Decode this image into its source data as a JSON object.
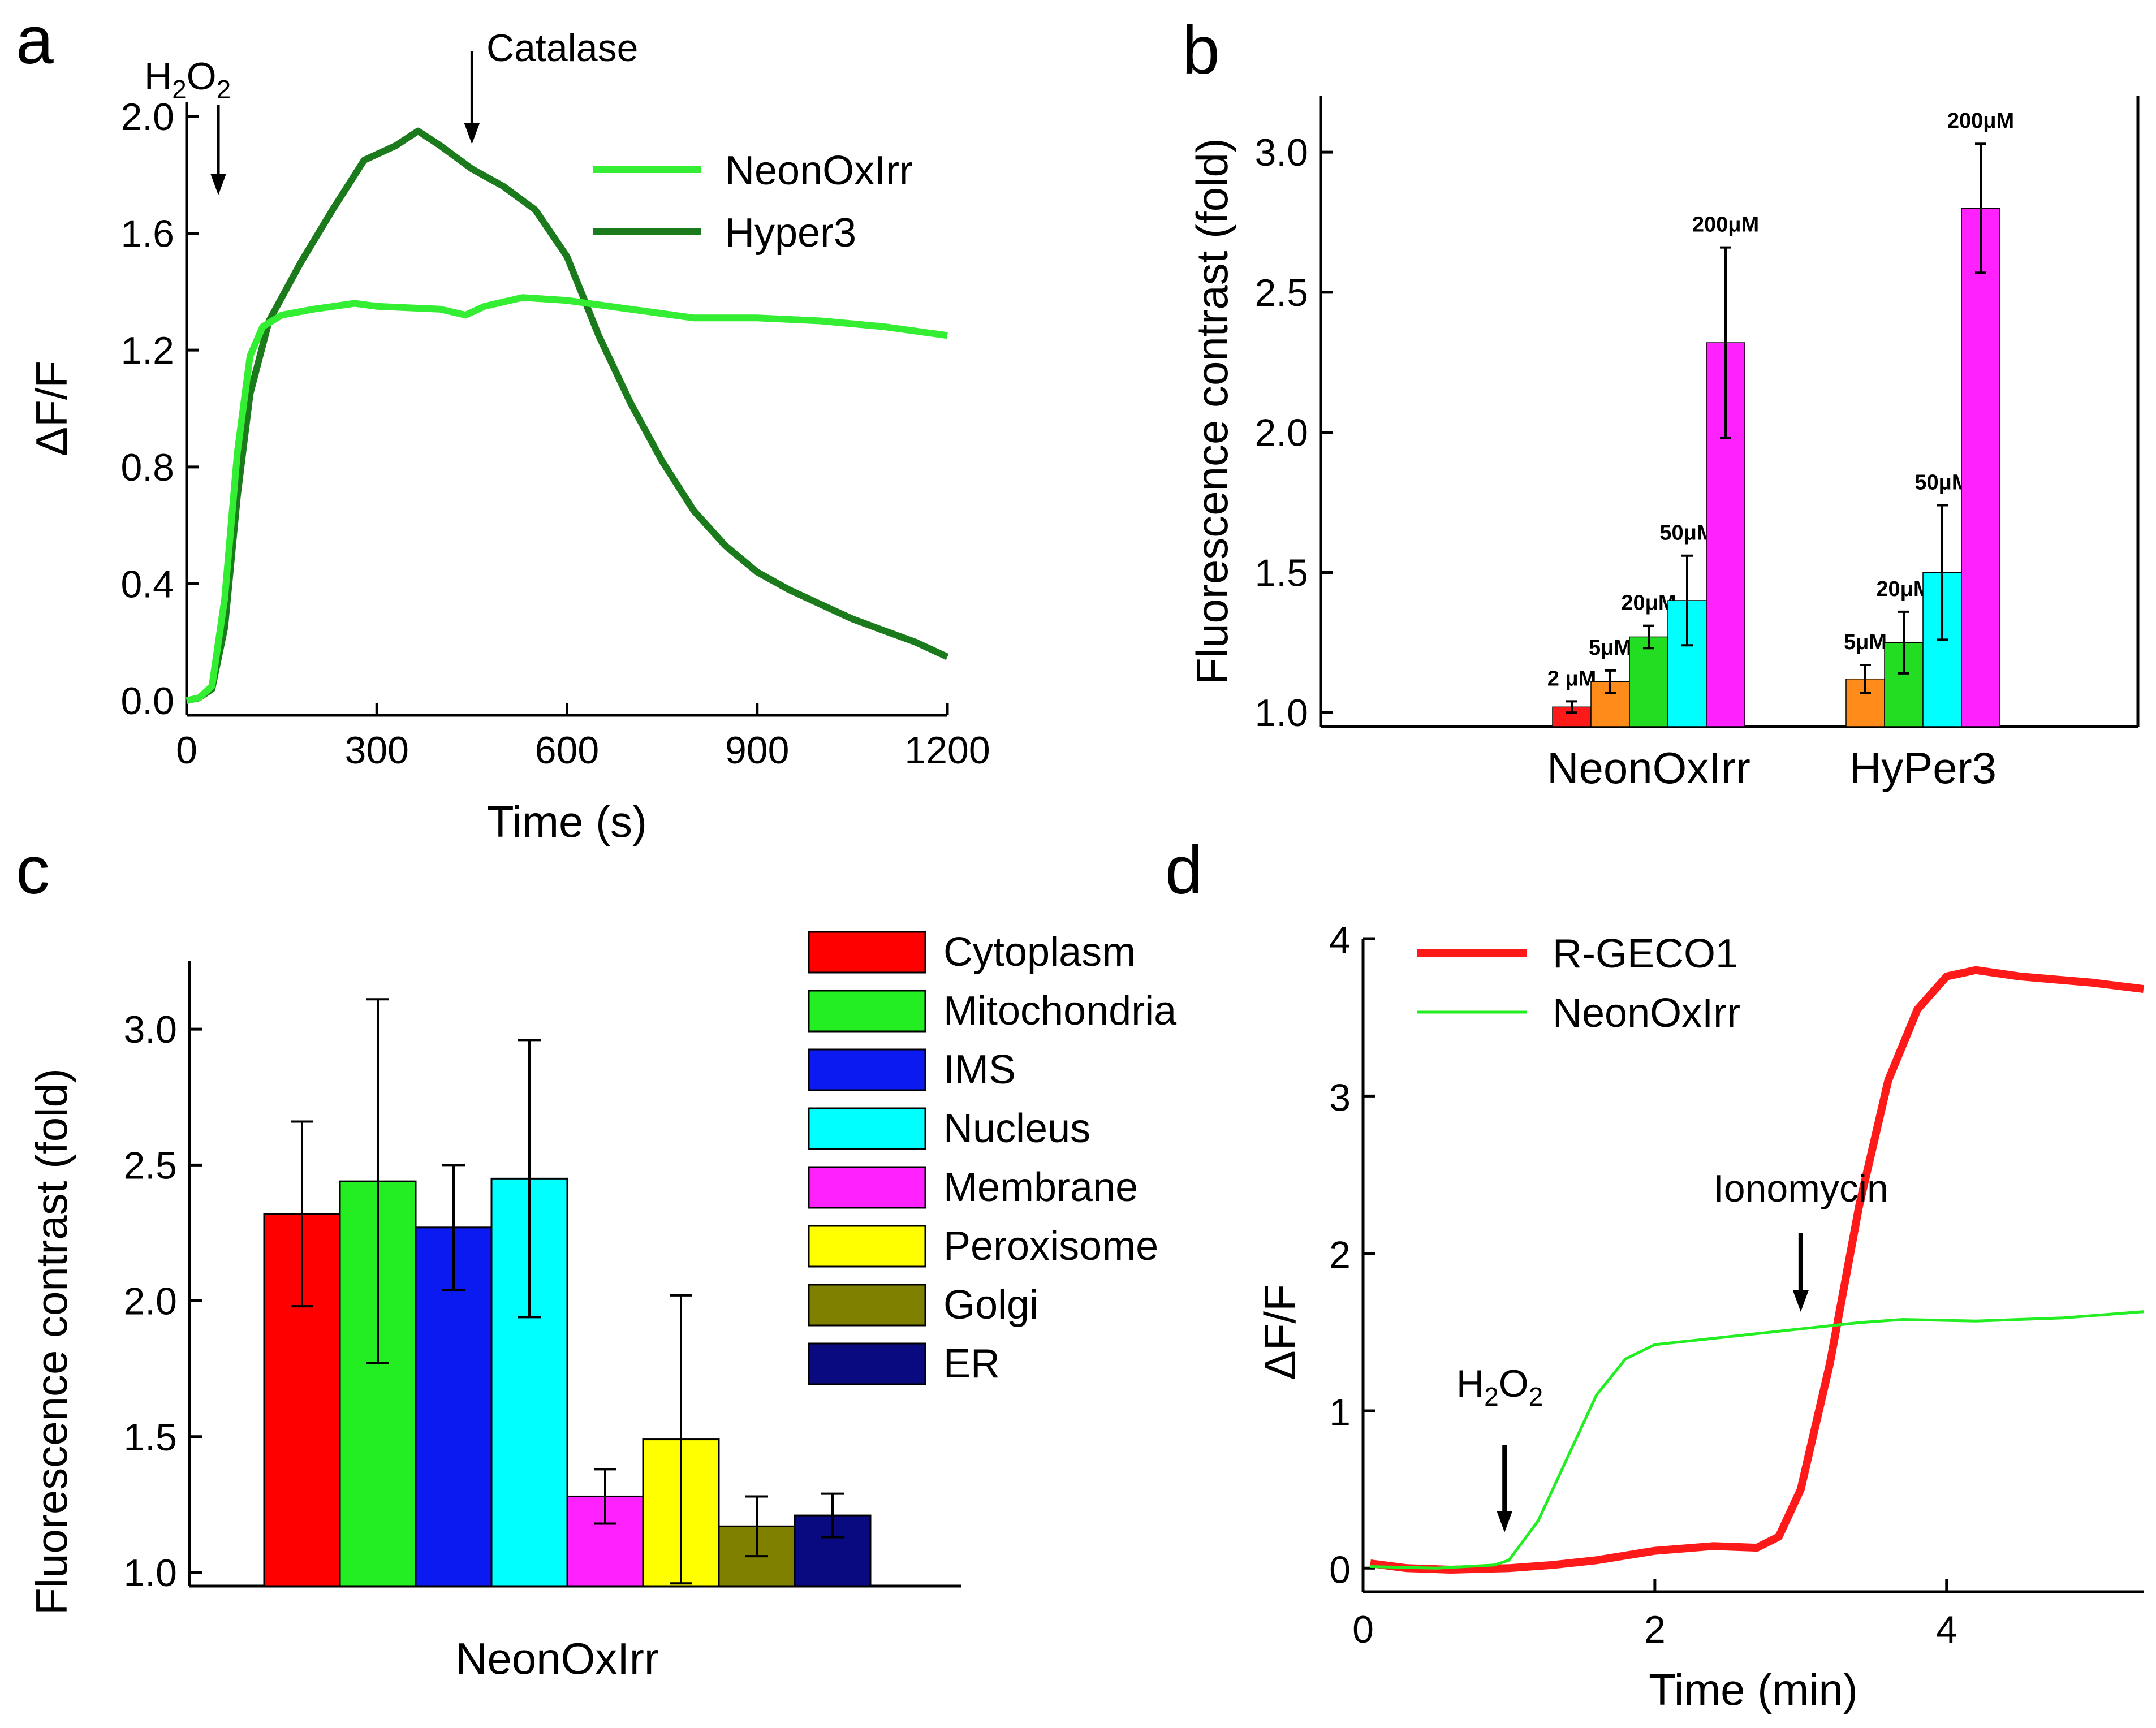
{
  "panels": {
    "a": {
      "letter": "a"
    },
    "b": {
      "letter": "b"
    },
    "c": {
      "letter": "c"
    },
    "d": {
      "letter": "d"
    }
  },
  "chart_data": [
    {
      "id": "a",
      "type": "line",
      "xlabel": "Time (s)",
      "ylabel": "ΔF/F",
      "xlim": [
        0,
        1200
      ],
      "ylim": [
        -0.05,
        2.05
      ],
      "xticks": [
        0,
        300,
        600,
        900,
        1200
      ],
      "xtick_labels": [
        "0",
        "300",
        "600",
        "900",
        "1200"
      ],
      "yticks": [
        0.0,
        0.4,
        0.8,
        1.2,
        1.6,
        2.0
      ],
      "ytick_labels": [
        "0.0",
        "0.4",
        "0.8",
        "1.2",
        "1.6",
        "2.0"
      ],
      "legend_position": "top-right",
      "annotations": {
        "h2o2": {
          "label_parts": [
            "H",
            "2",
            "O",
            "2"
          ],
          "x": 50
        },
        "catalase": {
          "label": "Catalase",
          "x": 450
        }
      },
      "series": [
        {
          "name": "NeonOxIrr",
          "color": "#33ee33",
          "points": [
            [
              0,
              0
            ],
            [
              20,
              0.01
            ],
            [
              40,
              0.05
            ],
            [
              60,
              0.35
            ],
            [
              80,
              0.85
            ],
            [
              100,
              1.18
            ],
            [
              120,
              1.28
            ],
            [
              150,
              1.32
            ],
            [
              200,
              1.34
            ],
            [
              265,
              1.36
            ],
            [
              300,
              1.35
            ],
            [
              400,
              1.34
            ],
            [
              440,
              1.32
            ],
            [
              470,
              1.35
            ],
            [
              530,
              1.38
            ],
            [
              600,
              1.37
            ],
            [
              700,
              1.34
            ],
            [
              800,
              1.31
            ],
            [
              900,
              1.31
            ],
            [
              1000,
              1.3
            ],
            [
              1100,
              1.28
            ],
            [
              1200,
              1.25
            ]
          ]
        },
        {
          "name": "Hyper3",
          "color": "#1b7a1b",
          "points": [
            [
              0,
              0
            ],
            [
              20,
              0.01
            ],
            [
              40,
              0.04
            ],
            [
              60,
              0.25
            ],
            [
              80,
              0.7
            ],
            [
              100,
              1.05
            ],
            [
              130,
              1.3
            ],
            [
              180,
              1.5
            ],
            [
              230,
              1.68
            ],
            [
              280,
              1.85
            ],
            [
              330,
              1.9
            ],
            [
              365,
              1.95
            ],
            [
              400,
              1.9
            ],
            [
              450,
              1.82
            ],
            [
              500,
              1.76
            ],
            [
              550,
              1.68
            ],
            [
              600,
              1.52
            ],
            [
              650,
              1.25
            ],
            [
              700,
              1.02
            ],
            [
              750,
              0.82
            ],
            [
              800,
              0.65
            ],
            [
              850,
              0.53
            ],
            [
              900,
              0.44
            ],
            [
              950,
              0.38
            ],
            [
              1000,
              0.33
            ],
            [
              1050,
              0.28
            ],
            [
              1100,
              0.24
            ],
            [
              1150,
              0.2
            ],
            [
              1200,
              0.15
            ]
          ]
        }
      ]
    },
    {
      "id": "b",
      "type": "bar",
      "ylabel": "Fluorescence contrast (fold)",
      "ylim": [
        0.95,
        3.2
      ],
      "yticks": [
        1.0,
        1.5,
        2.0,
        2.5,
        3.0
      ],
      "ytick_labels": [
        "1.0",
        "1.5",
        "2.0",
        "2.5",
        "3.0"
      ],
      "categories": [
        "NeonOxIrr",
        "HyPer3"
      ],
      "groups": [
        {
          "category": "NeonOxIrr",
          "bars": [
            {
              "label": "2 μM",
              "value": 1.02,
              "error": 0.02,
              "color": "#ff1a1a"
            },
            {
              "label": "5μM",
              "value": 1.11,
              "error": 0.04,
              "color": "#ff8c1a"
            },
            {
              "label": "20μM",
              "value": 1.27,
              "error": 0.04,
              "color": "#22dd22"
            },
            {
              "label": "50μM",
              "value": 1.4,
              "error": 0.16,
              "color": "#00ffff"
            },
            {
              "label": "200μM",
              "value": 2.32,
              "error": 0.34,
              "color": "#ff22ff"
            }
          ]
        },
        {
          "category": "HyPer3",
          "bars": [
            {
              "label": "5μM",
              "value": 1.12,
              "error": 0.05,
              "color": "#ff8c1a"
            },
            {
              "label": "20μM",
              "value": 1.25,
              "error": 0.11,
              "color": "#22dd22"
            },
            {
              "label": "50μM",
              "value": 1.5,
              "error": 0.24,
              "color": "#00ffff"
            },
            {
              "label": "200μM",
              "value": 2.8,
              "error": 0.23,
              "color": "#ff22ff"
            }
          ]
        }
      ]
    },
    {
      "id": "c",
      "type": "bar",
      "xlabel": "NeonOxIrr",
      "ylabel": "Fluorescence contrast (fold)",
      "ylim": [
        0.95,
        3.25
      ],
      "yticks": [
        1.0,
        1.5,
        2.0,
        2.5,
        3.0
      ],
      "ytick_labels": [
        "1.0",
        "1.5",
        "2.0",
        "2.5",
        "3.0"
      ],
      "legend_position": "top-right",
      "bars": [
        {
          "label": "Cytoplasm",
          "value": 2.32,
          "error": 0.34,
          "color": "#ff0000"
        },
        {
          "label": "Mitochondria",
          "value": 2.44,
          "error": 0.67,
          "color": "#22ee22"
        },
        {
          "label": "IMS",
          "value": 2.27,
          "error": 0.23,
          "color": "#0a1af0"
        },
        {
          "label": "Nucleus",
          "value": 2.45,
          "error": 0.51,
          "color": "#00ffff"
        },
        {
          "label": "Membrane",
          "value": 1.28,
          "error": 0.1,
          "color": "#ff22ff"
        },
        {
          "label": "Peroxisome",
          "value": 1.49,
          "error": 0.53,
          "color": "#ffff00"
        },
        {
          "label": "Golgi",
          "value": 1.17,
          "error": 0.11,
          "color": "#7f7f00"
        },
        {
          "label": "ER",
          "value": 1.21,
          "error": 0.08,
          "color": "#0a0a80"
        }
      ]
    },
    {
      "id": "d",
      "type": "line",
      "xlabel": "Time (min)",
      "ylabel": "ΔF/F",
      "xlim": [
        0,
        5.35
      ],
      "ylim": [
        -0.15,
        4.0
      ],
      "xticks": [
        0,
        2,
        4
      ],
      "xtick_labels": [
        "0",
        "2",
        "4"
      ],
      "yticks": [
        0,
        1,
        2,
        3,
        4
      ],
      "ytick_labels": [
        "0",
        "1",
        "2",
        "3",
        "4"
      ],
      "legend_position": "top-left",
      "annotations": {
        "h2o2": {
          "label_parts": [
            "H",
            "2",
            "O",
            "2"
          ],
          "x": 0.97
        },
        "ionomycin": {
          "label": "Ionomycin",
          "x": 3.0
        }
      },
      "series": [
        {
          "name": "R-GECO1",
          "color": "#ff1a1a",
          "points": [
            [
              0.05,
              0.03
            ],
            [
              0.3,
              0.0
            ],
            [
              0.6,
              -0.01
            ],
            [
              1.0,
              0.0
            ],
            [
              1.3,
              0.02
            ],
            [
              1.6,
              0.05
            ],
            [
              2.0,
              0.11
            ],
            [
              2.4,
              0.14
            ],
            [
              2.7,
              0.13
            ],
            [
              2.85,
              0.2
            ],
            [
              3.0,
              0.5
            ],
            [
              3.2,
              1.3
            ],
            [
              3.4,
              2.3
            ],
            [
              3.6,
              3.1
            ],
            [
              3.8,
              3.55
            ],
            [
              4.0,
              3.76
            ],
            [
              4.2,
              3.8
            ],
            [
              4.5,
              3.76
            ],
            [
              5.0,
              3.72
            ],
            [
              5.35,
              3.68
            ]
          ]
        },
        {
          "name": "NeonOxIrr",
          "color": "#22ee22",
          "points": [
            [
              0.05,
              0.01
            ],
            [
              0.5,
              0.0
            ],
            [
              0.9,
              0.02
            ],
            [
              1.0,
              0.05
            ],
            [
              1.2,
              0.3
            ],
            [
              1.4,
              0.7
            ],
            [
              1.6,
              1.1
            ],
            [
              1.8,
              1.33
            ],
            [
              2.0,
              1.42
            ],
            [
              2.3,
              1.45
            ],
            [
              2.6,
              1.48
            ],
            [
              3.0,
              1.52
            ],
            [
              3.4,
              1.56
            ],
            [
              3.7,
              1.58
            ],
            [
              4.2,
              1.57
            ],
            [
              4.8,
              1.59
            ],
            [
              5.35,
              1.63
            ]
          ]
        }
      ]
    }
  ]
}
